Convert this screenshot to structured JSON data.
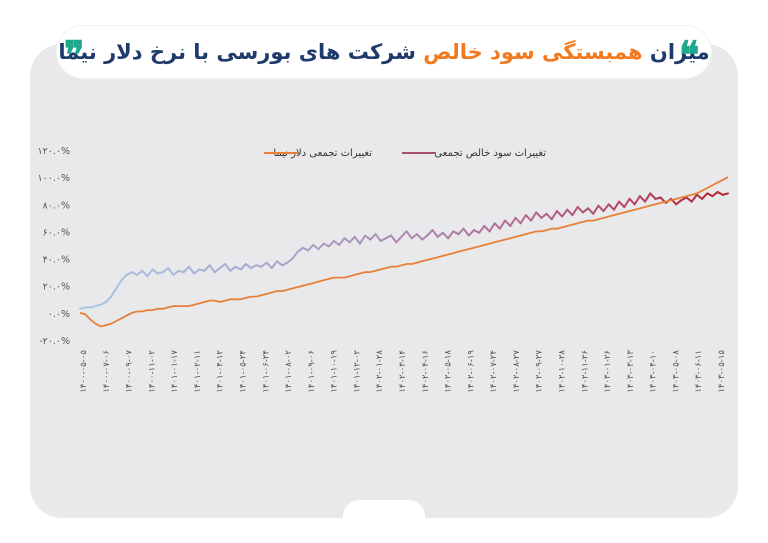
{
  "header": {
    "title_part1": "میزان ",
    "title_accent": "همبستگی سود خالص",
    "title_part2": " شرکت های بورسی با نرخ دلار نیما",
    "quote_open": "❞",
    "quote_close": "❝"
  },
  "colors": {
    "title": "#1f3a6d",
    "accent": "#f07a1f",
    "quote": "#1fa88e",
    "card": "#e9e9eb",
    "dollar_series": "#e8803a",
    "profit_series_start": "#a9c6e6",
    "profit_series_end": "#b3202f"
  },
  "chart_data": {
    "type": "line",
    "title": "",
    "xlabel": "",
    "ylabel": "",
    "ylim": [
      -20,
      120
    ],
    "yticks": [
      -20,
      0,
      20,
      40,
      60,
      80,
      100,
      120
    ],
    "ytick_labels": [
      "-۲۰.۰%",
      "۰.۰%",
      "۲۰.۰%",
      "۴۰.۰%",
      "۶۰.۰%",
      "۸۰.۰%",
      "۱۰۰.۰%",
      "۱۲۰.۰%"
    ],
    "grid": false,
    "legend_position": "top",
    "x_tick_labels": [
      "۱۴۰۰-۰۵-۰۵",
      "۱۴۰۰-۰۷-۰۶",
      "۱۴۰۰-۰۹-۰۷",
      "۱۴۰۰-۱۱-۰۲",
      "۱۴۰۱-۰۱-۱۷",
      "۱۴۰۱-۰۲-۱۱",
      "۱۴۰۱-۰۴-۱۲",
      "۱۴۰۱-۰۵-۲۴",
      "۱۴۰۱-۰۶-۲۴",
      "۱۴۰۱-۰۸-۰۲",
      "۱۴۰۱-۰۹-۰۶",
      "۱۴۰۱-۱۰-۱۹",
      "۱۴۰۱-۱۲-۰۲",
      "۱۴۰۲-۰۱-۲۸",
      "۱۴۰۲-۰۳-۱۴",
      "۱۴۰۲-۰۴-۱۶",
      "۱۴۰۲-۰۵-۱۸",
      "۱۴۰۲-۰۶-۱۹",
      "۱۴۰۲-۰۷-۲۴",
      "۱۴۰۲-۰۸-۲۷",
      "۱۴۰۲-۰۹-۲۷",
      "۱۴۰۲-۱۰-۲۸",
      "۱۴۰۲-۱۱-۲۶",
      "۱۴۰۳-۰۱-۲۶",
      "۱۴۰۳-۰۳-۱۳",
      "۱۴۰۳-۰۴-۱۰",
      "۱۴۰۳-۰۵-۰۸",
      "۱۴۰۳-۰۶-۱۱",
      "۱۴۰۳-۰۵-۱۵"
    ],
    "series": [
      {
        "name": "تغییرات تجمعی دلار نیما",
        "color": "#e8803a",
        "values": [
          0,
          -1,
          -5,
          -8,
          -10,
          -9,
          -8,
          -6,
          -4,
          -2,
          0,
          1,
          1,
          2,
          2,
          3,
          3,
          4,
          5,
          5,
          5,
          5,
          6,
          7,
          8,
          9,
          9,
          8,
          9,
          10,
          10,
          10,
          11,
          12,
          12,
          13,
          14,
          15,
          16,
          16,
          17,
          18,
          19,
          20,
          21,
          22,
          23,
          24,
          25,
          26,
          26,
          26,
          27,
          28,
          29,
          30,
          30,
          31,
          32,
          33,
          34,
          34,
          35,
          36,
          36,
          37,
          38,
          39,
          40,
          41,
          42,
          43,
          44,
          45,
          46,
          47,
          48,
          49,
          50,
          51,
          52,
          53,
          54,
          55,
          56,
          57,
          58,
          59,
          60,
          60,
          61,
          62,
          62,
          63,
          64,
          65,
          66,
          67,
          68,
          68,
          69,
          70,
          71,
          72,
          73,
          74,
          75,
          76,
          77,
          78,
          79,
          80,
          81,
          82,
          83,
          84,
          85,
          86,
          87,
          88,
          90,
          92,
          94,
          96,
          98,
          100
        ]
      },
      {
        "name": "تغییرات سود خالص تجمعی",
        "color": "#b3202f",
        "values": [
          3,
          4,
          4,
          5,
          6,
          8,
          12,
          18,
          24,
          28,
          30,
          28,
          31,
          27,
          32,
          29,
          30,
          33,
          28,
          31,
          30,
          34,
          29,
          32,
          31,
          35,
          30,
          33,
          36,
          31,
          34,
          32,
          36,
          33,
          35,
          34,
          37,
          33,
          38,
          35,
          37,
          40,
          45,
          48,
          46,
          50,
          47,
          51,
          49,
          53,
          50,
          55,
          52,
          56,
          51,
          57,
          54,
          58,
          53,
          55,
          57,
          52,
          56,
          60,
          55,
          58,
          54,
          57,
          61,
          56,
          59,
          55,
          60,
          58,
          62,
          57,
          61,
          59,
          64,
          60,
          66,
          62,
          68,
          64,
          70,
          66,
          72,
          68,
          74,
          70,
          73,
          69,
          75,
          71,
          76,
          72,
          78,
          74,
          77,
          73,
          79,
          75,
          80,
          76,
          82,
          78,
          84,
          80,
          86,
          82,
          88,
          84,
          85,
          81,
          84,
          80,
          83,
          85,
          82,
          87,
          84,
          88,
          86,
          89,
          87,
          88
        ]
      }
    ]
  }
}
